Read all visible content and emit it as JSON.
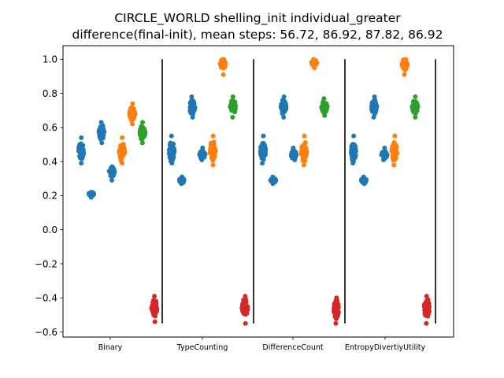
{
  "chart_data": {
    "type": "scatter",
    "title_lines": [
      "CIRCLE_WORLD shelling_init individual_greater",
      "difference(final-init), mean steps: 56.72, 86.92, 87.82, 86.92"
    ],
    "xlabel": "",
    "ylabel": "",
    "categories": [
      "Binary",
      "TypeCounting",
      "DifferenceCount",
      "EntropyDivertiyUtility"
    ],
    "ylim": [
      -0.63,
      1.08
    ],
    "yticks": [
      -0.6,
      -0.4,
      -0.2,
      0.0,
      0.2,
      0.4,
      0.6,
      0.8,
      1.0
    ],
    "ytick_labels": [
      "−0.6",
      "−0.4",
      "−0.2",
      "0.0",
      "0.2",
      "0.4",
      "0.6",
      "0.8",
      "1.0"
    ],
    "separators": {
      "ymin": -0.55,
      "ymax": 1.0
    },
    "grid": false,
    "colors": {
      "blue": "#1f77b4",
      "orange": "#ff7f0e",
      "green": "#2ca02c",
      "red": "#d62728",
      "separator": "#000000"
    },
    "groups": [
      {
        "category": "Binary",
        "clusters": [
          {
            "color": "blue",
            "center": 0.46,
            "low": 0.39,
            "high": 0.54
          },
          {
            "color": "blue",
            "center": 0.21,
            "low": 0.19,
            "high": 0.22
          },
          {
            "color": "blue",
            "center": 0.57,
            "low": 0.51,
            "high": 0.63
          },
          {
            "color": "blue",
            "center": 0.34,
            "low": 0.29,
            "high": 0.37
          },
          {
            "color": "orange",
            "center": 0.46,
            "low": 0.39,
            "high": 0.54
          },
          {
            "color": "orange",
            "center": 0.68,
            "low": 0.62,
            "high": 0.74
          },
          {
            "color": "green",
            "center": 0.57,
            "low": 0.51,
            "high": 0.63
          },
          {
            "color": "red",
            "center": -0.46,
            "low": -0.54,
            "high": -0.39
          }
        ]
      },
      {
        "category": "TypeCounting",
        "clusters": [
          {
            "color": "blue",
            "center": 0.46,
            "low": 0.39,
            "high": 0.55
          },
          {
            "color": "blue",
            "center": 0.29,
            "low": 0.27,
            "high": 0.31
          },
          {
            "color": "blue",
            "center": 0.72,
            "low": 0.66,
            "high": 0.78
          },
          {
            "color": "blue",
            "center": 0.44,
            "low": 0.41,
            "high": 0.48
          },
          {
            "color": "orange",
            "center": 0.46,
            "low": 0.38,
            "high": 0.55
          },
          {
            "color": "orange",
            "center": 0.97,
            "low": 0.91,
            "high": 1.0
          },
          {
            "color": "green",
            "center": 0.72,
            "low": 0.66,
            "high": 0.78
          },
          {
            "color": "red",
            "center": -0.46,
            "low": -0.55,
            "high": -0.39
          }
        ]
      },
      {
        "category": "DifferenceCount",
        "clusters": [
          {
            "color": "blue",
            "center": 0.46,
            "low": 0.39,
            "high": 0.55
          },
          {
            "color": "blue",
            "center": 0.29,
            "low": 0.27,
            "high": 0.31
          },
          {
            "color": "blue",
            "center": 0.72,
            "low": 0.66,
            "high": 0.78
          },
          {
            "color": "blue",
            "center": 0.44,
            "low": 0.41,
            "high": 0.48
          },
          {
            "color": "orange",
            "center": 0.46,
            "low": 0.38,
            "high": 0.55
          },
          {
            "color": "orange",
            "center": 0.98,
            "low": 0.95,
            "high": 1.0
          },
          {
            "color": "green",
            "center": 0.72,
            "low": 0.67,
            "high": 0.77
          },
          {
            "color": "red",
            "center": -0.47,
            "low": -0.55,
            "high": -0.4
          }
        ]
      },
      {
        "category": "EntropyDivertiyUtility",
        "clusters": [
          {
            "color": "blue",
            "center": 0.46,
            "low": 0.39,
            "high": 0.55
          },
          {
            "color": "blue",
            "center": 0.29,
            "low": 0.27,
            "high": 0.31
          },
          {
            "color": "blue",
            "center": 0.72,
            "low": 0.66,
            "high": 0.78
          },
          {
            "color": "blue",
            "center": 0.44,
            "low": 0.41,
            "high": 0.48
          },
          {
            "color": "orange",
            "center": 0.46,
            "low": 0.38,
            "high": 0.55
          },
          {
            "color": "orange",
            "center": 0.97,
            "low": 0.91,
            "high": 1.0
          },
          {
            "color": "green",
            "center": 0.72,
            "low": 0.66,
            "high": 0.78
          },
          {
            "color": "red",
            "center": -0.46,
            "low": -0.55,
            "high": -0.39
          }
        ]
      }
    ]
  }
}
